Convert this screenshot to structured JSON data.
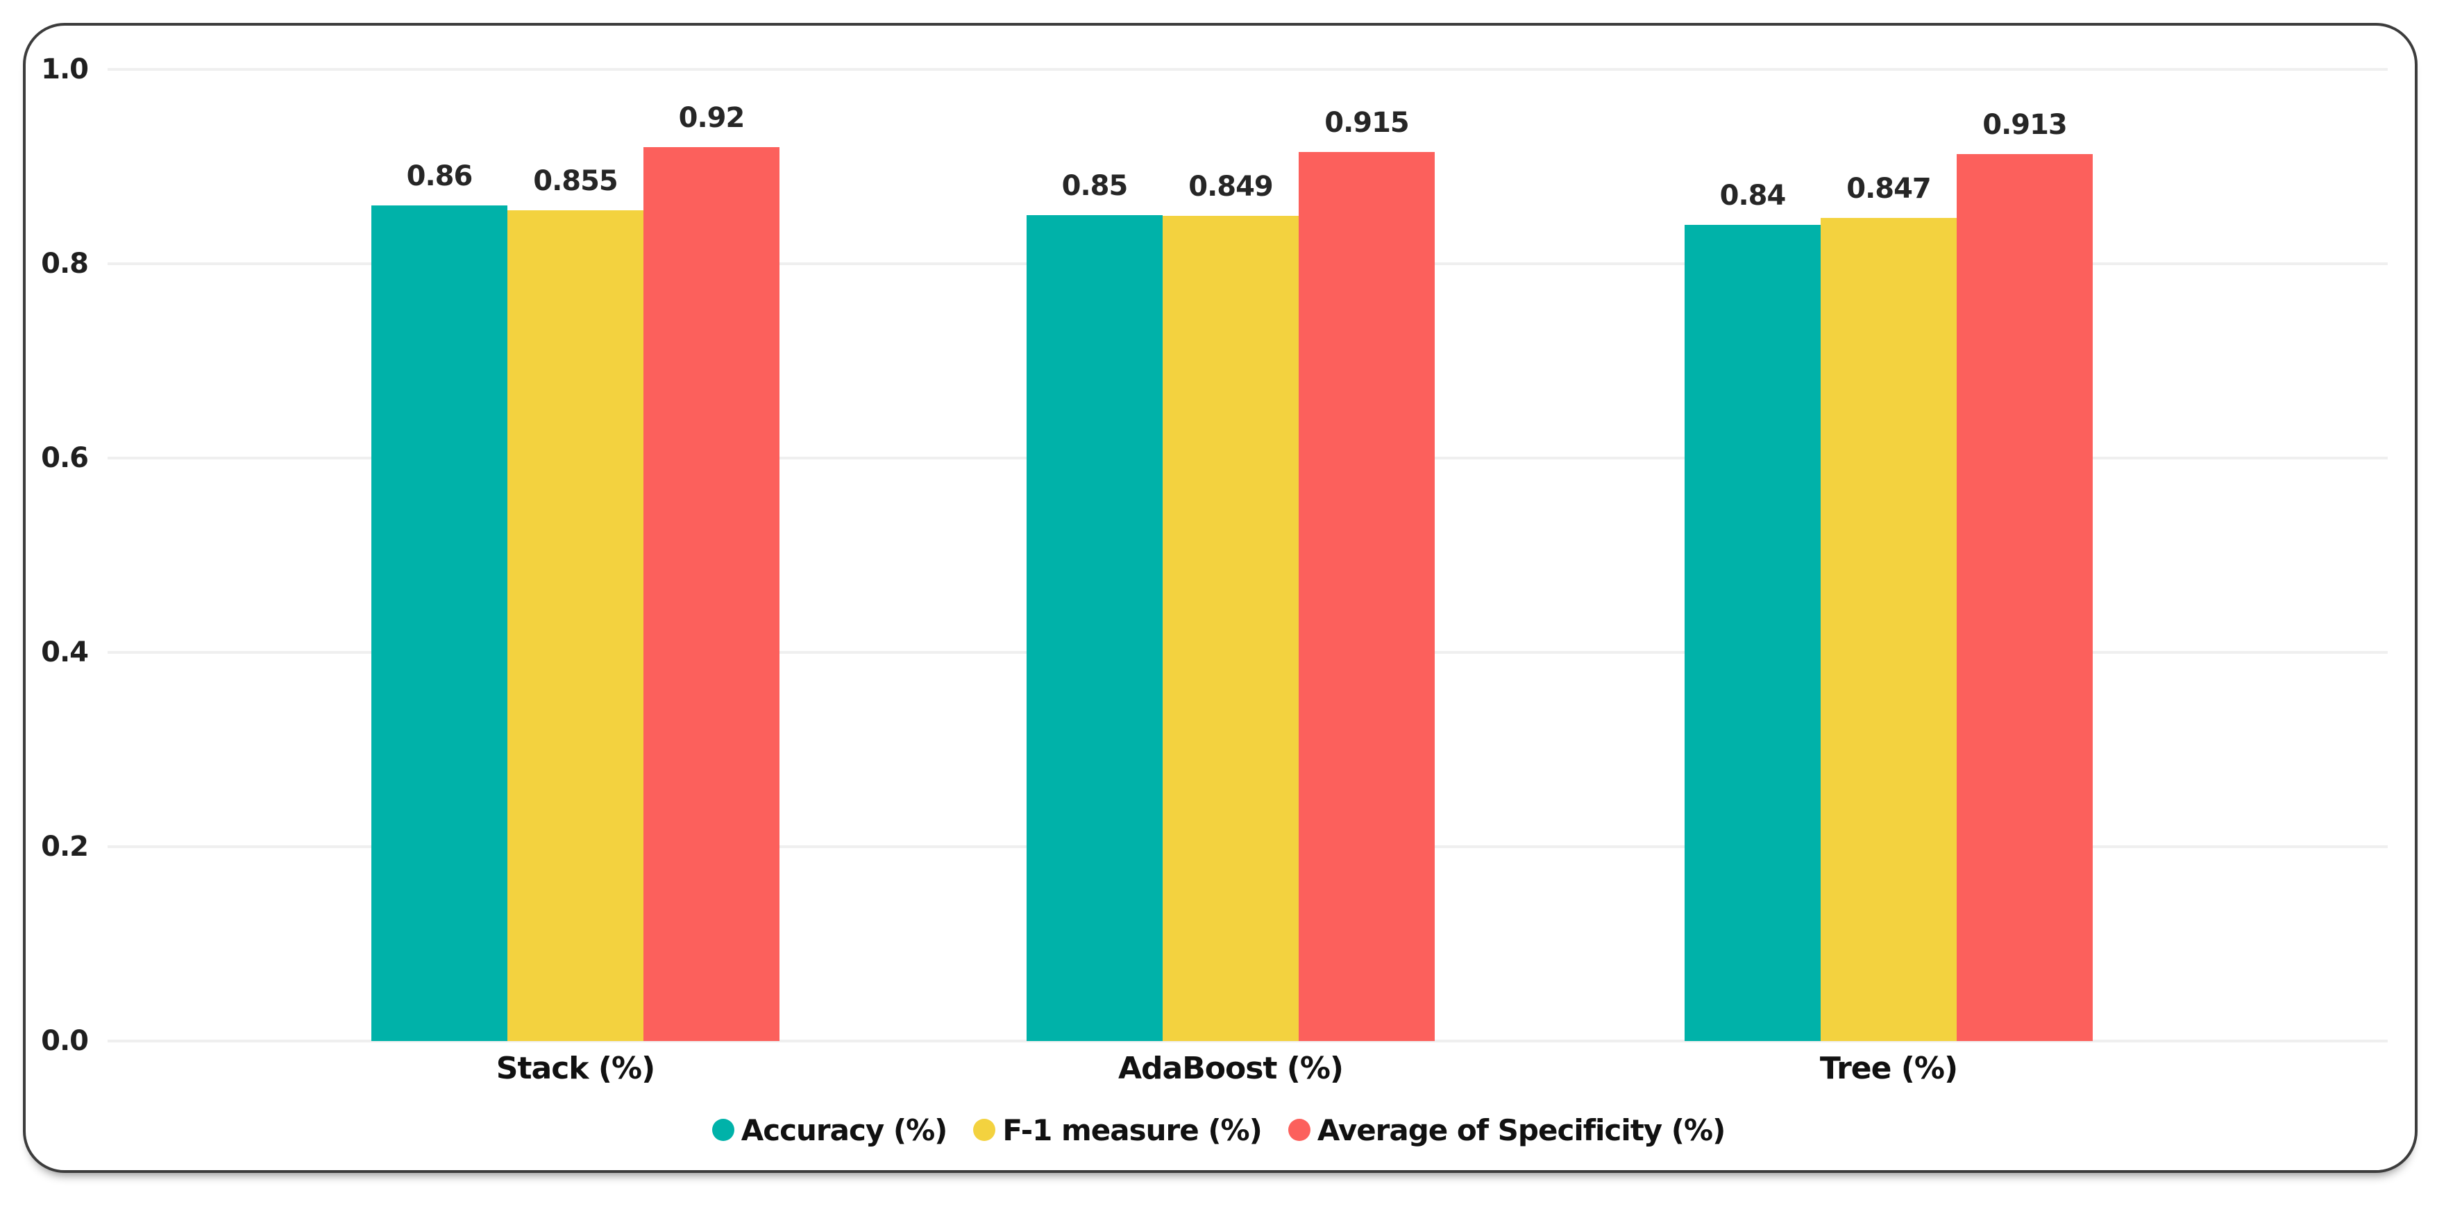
{
  "chart_data": {
    "type": "bar",
    "categories": [
      "Stack (%)",
      "AdaBoost (%)",
      "Tree (%)"
    ],
    "series": [
      {
        "name": "Accuracy (%)",
        "color": "#00B2A9",
        "values": [
          0.86,
          0.85,
          0.84
        ]
      },
      {
        "name": "F-1 measure (%)",
        "color": "#F3D23F",
        "values": [
          0.855,
          0.849,
          0.847
        ]
      },
      {
        "name": "Average of Specificity (%)",
        "color": "#FC605C",
        "values": [
          0.92,
          0.915,
          0.913
        ]
      }
    ],
    "y_ticks": [
      "1.0",
      "0.8",
      "0.6",
      "0.4",
      "0.2",
      "0.0"
    ],
    "ylim": [
      0,
      1.0
    ],
    "grid": true,
    "legend_position": "bottom"
  },
  "styles": {
    "background": "#FFFFFF",
    "grid_color": "#EFEFEF",
    "text_color": "#1F1F1F",
    "card_border_color": "#3C3C3C"
  }
}
